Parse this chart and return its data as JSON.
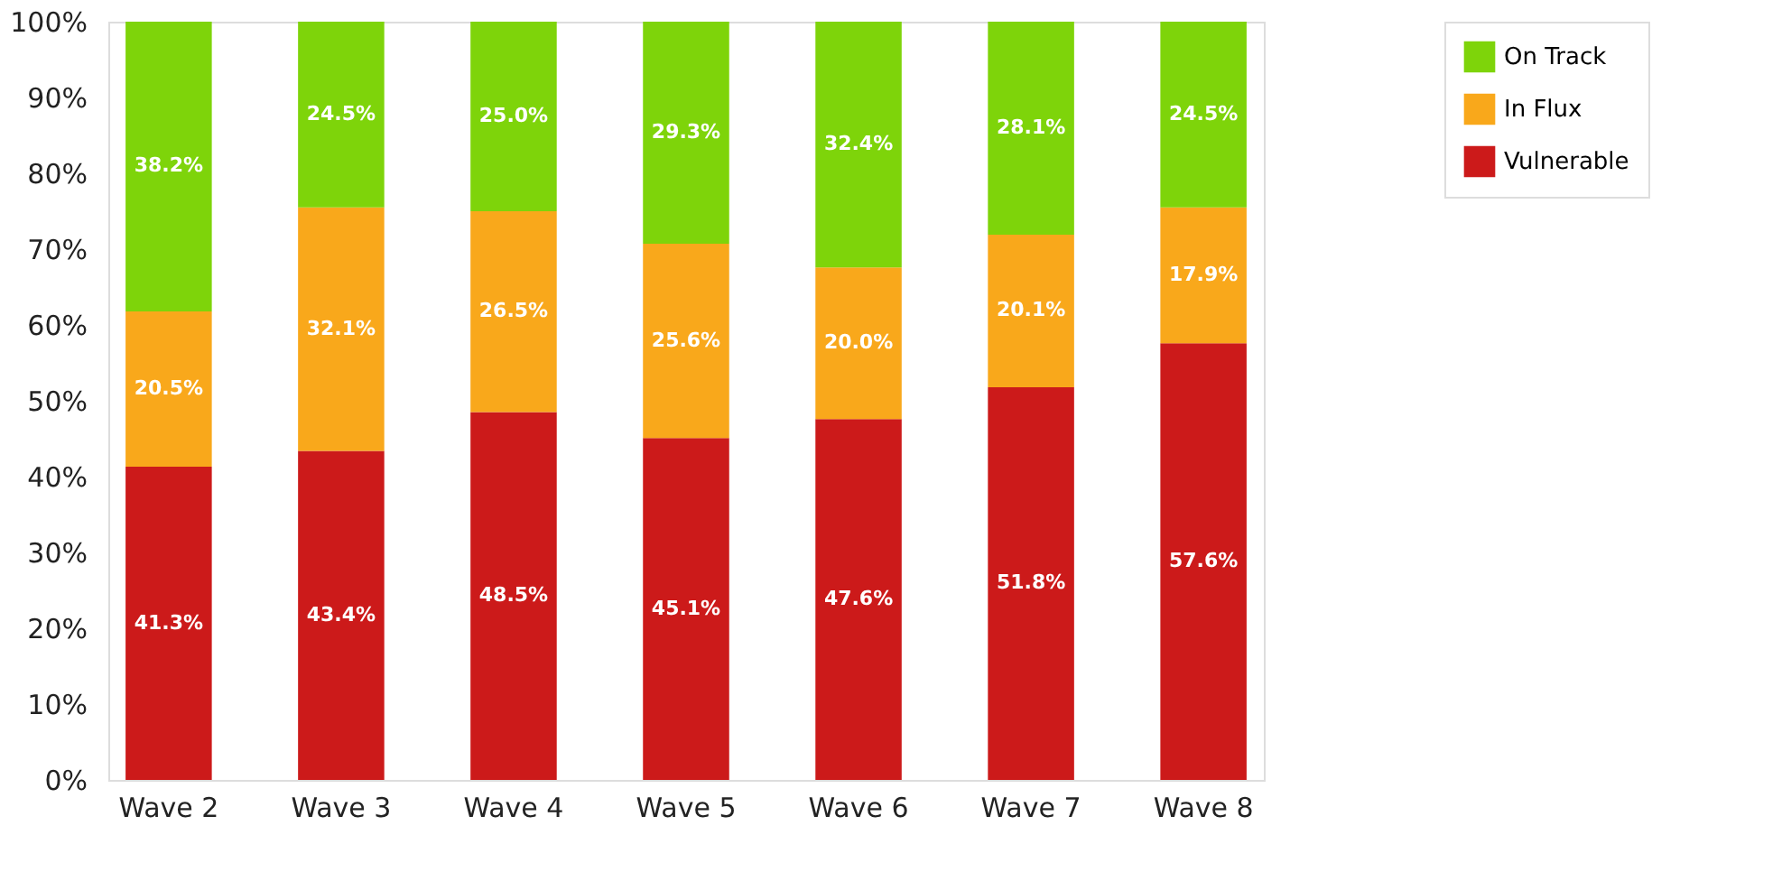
{
  "chart_data": {
    "type": "bar",
    "stacked": true,
    "categories": [
      "Wave 2",
      "Wave 3",
      "Wave 4",
      "Wave 5",
      "Wave 6",
      "Wave 7",
      "Wave 8"
    ],
    "series": [
      {
        "name": "Vulnerable",
        "color": "#cc1a1a",
        "values": [
          41.3,
          43.4,
          48.5,
          45.1,
          47.6,
          51.8,
          57.6
        ],
        "value_labels": [
          "41.3%",
          "43.4%",
          "48.5%",
          "45.1%",
          "47.6%",
          "51.8%",
          "57.6%"
        ]
      },
      {
        "name": "In Flux",
        "color": "#f9a81b",
        "values": [
          20.5,
          32.1,
          26.5,
          25.6,
          20.0,
          20.1,
          17.9
        ],
        "value_labels": [
          "20.5%",
          "32.1%",
          "26.5%",
          "25.6%",
          "20.0%",
          "20.1%",
          "17.9%"
        ]
      },
      {
        "name": "On Track",
        "color": "#7ed40a",
        "values": [
          38.2,
          24.5,
          25.0,
          29.3,
          32.4,
          28.1,
          24.5
        ],
        "value_labels": [
          "38.2%",
          "24.5%",
          "25.0%",
          "29.3%",
          "32.4%",
          "28.1%",
          "24.5%"
        ]
      }
    ],
    "ylim": [
      0,
      100
    ],
    "yticks": [
      {
        "value": 0,
        "label": "0%"
      },
      {
        "value": 10,
        "label": "10%"
      },
      {
        "value": 20,
        "label": "20%"
      },
      {
        "value": 30,
        "label": "30%"
      },
      {
        "value": 40,
        "label": "40%"
      },
      {
        "value": 50,
        "label": "50%"
      },
      {
        "value": 60,
        "label": "60%"
      },
      {
        "value": 70,
        "label": "70%"
      },
      {
        "value": 80,
        "label": "80%"
      },
      {
        "value": 90,
        "label": "90%"
      },
      {
        "value": 100,
        "label": "100%"
      }
    ],
    "grid": false,
    "legend": "right"
  }
}
